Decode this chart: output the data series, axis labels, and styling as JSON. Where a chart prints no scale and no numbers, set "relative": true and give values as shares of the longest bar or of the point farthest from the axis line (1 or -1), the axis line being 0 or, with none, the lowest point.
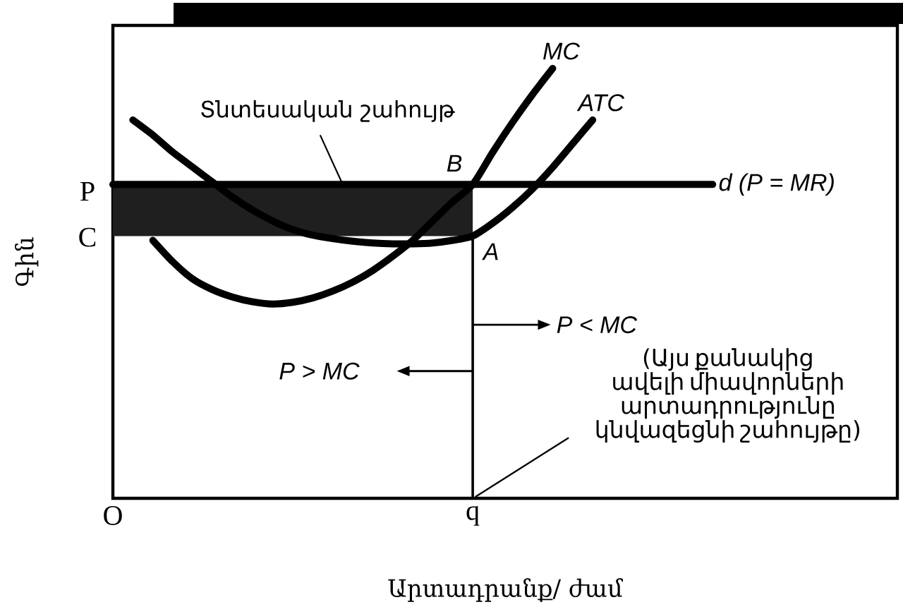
{
  "chart_data": {
    "type": "line",
    "relative": true,
    "xlabel": "Արտադրանք/ ժամ",
    "ylabel": "Գին",
    "categories": [
      "O",
      null,
      null,
      null,
      null,
      null,
      null,
      null,
      null,
      null,
      null,
      null,
      null,
      null,
      null,
      null,
      null,
      null,
      "q",
      null,
      null,
      null,
      null,
      null,
      null,
      null,
      null,
      null,
      null,
      null,
      null,
      null,
      null,
      null,
      null,
      null,
      null,
      null,
      null,
      null
    ],
    "series": [
      {
        "name": "d (P = MR)",
        "color": "#000000",
        "values": [
          0.73,
          0.73,
          0.73,
          0.73,
          0.73,
          0.73,
          0.73,
          0.73,
          0.73,
          0.73,
          0.73,
          0.73,
          0.73,
          0.73,
          0.73,
          0.73,
          0.73,
          0.73,
          0.73,
          0.73,
          0.73,
          0.73,
          0.73,
          0.73,
          0.73,
          0.73,
          0.73,
          0.73,
          0.73,
          0.73,
          0.73,
          null,
          null,
          null,
          null,
          null,
          null,
          null,
          null,
          null
        ],
        "upper": [
          0.73,
          0.73,
          0.73,
          0.73,
          0.73,
          0.73,
          0.73,
          0.73,
          0.73,
          0.73,
          0.73,
          0.73,
          0.73,
          0.73,
          0.73,
          0.73,
          0.73,
          0.73,
          0.73,
          null,
          null,
          null,
          null,
          null,
          null,
          null,
          null,
          null,
          null,
          null,
          null,
          null,
          null,
          null,
          null,
          null,
          null,
          null,
          null,
          null
        ],
        "lower": [
          0.61,
          0.61,
          0.61,
          0.61,
          0.61,
          0.61,
          0.61,
          0.61,
          0.61,
          0.61,
          0.61,
          0.61,
          0.61,
          0.61,
          0.61,
          0.61,
          0.61,
          0.61,
          0.61,
          null,
          null,
          null,
          null,
          null,
          null,
          null,
          null,
          null,
          null,
          null,
          null,
          null,
          null,
          null,
          null,
          null,
          null,
          null,
          null,
          null
        ]
      },
      {
        "name": "MC",
        "color": "#000000",
        "values": [
          null,
          null,
          0.6,
          0.55,
          0.51,
          0.485,
          0.468,
          0.457,
          0.452,
          0.456,
          0.466,
          0.482,
          0.503,
          0.53,
          0.563,
          0.6,
          0.645,
          0.69,
          0.73,
          0.805,
          0.875,
          0.94,
          1.0,
          null,
          null,
          null,
          null,
          null,
          null,
          null,
          null,
          null,
          null,
          null,
          null,
          null,
          null,
          null,
          null,
          null
        ]
      },
      {
        "name": "ATC",
        "color": "#000000",
        "values": [
          null,
          0.88,
          0.845,
          0.805,
          0.77,
          0.735,
          0.7,
          0.67,
          0.645,
          0.625,
          0.612,
          0.604,
          0.598,
          0.594,
          0.592,
          0.592,
          0.594,
          0.6,
          0.61,
          0.64,
          0.677,
          0.72,
          0.77,
          0.825,
          0.88,
          null,
          null,
          null,
          null,
          null,
          null,
          null,
          null,
          null,
          null,
          null,
          null,
          null,
          null,
          null
        ]
      },
      {
        "color": "#000000",
        "x": [
          "q",
          "q"
        ],
        "values": [
          0,
          0.61
        ]
      }
    ],
    "annotations": [
      {
        "text": "Տնտեսական շահույթ",
        "y": 0.73
      },
      {
        "text": "B",
        "x": "q",
        "y": 0.73
      },
      {
        "text": "A",
        "x": "q",
        "y": 0.61
      },
      "P",
      "C",
      "P > MC",
      "P < MC",
      "(Այս քանակից ավելի միավորների արտադրությունը կնվազեցնի շահույթը)"
    ]
  }
}
